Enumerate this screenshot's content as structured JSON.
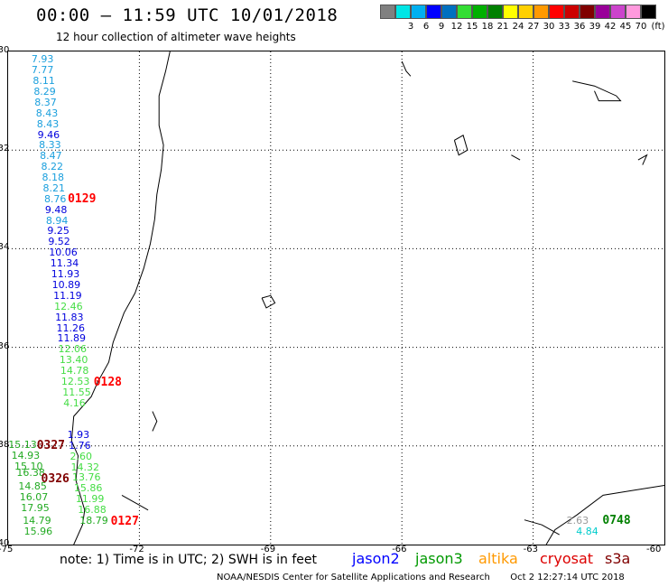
{
  "header": {
    "title": "00:00 — 11:59 UTC 10/01/2018",
    "subtitle": "12 hour collection of altimeter wave heights"
  },
  "legend": {
    "unit": "(ft)",
    "items": [
      {
        "label": "",
        "color": "#808080"
      },
      {
        "label": "3",
        "color": "#00e5e5"
      },
      {
        "label": "6",
        "color": "#00b0f0"
      },
      {
        "label": "9",
        "color": "#0000ff"
      },
      {
        "label": "12",
        "color": "#0070c0"
      },
      {
        "label": "15",
        "color": "#33dd33"
      },
      {
        "label": "18",
        "color": "#00b000"
      },
      {
        "label": "21",
        "color": "#008000"
      },
      {
        "label": "24",
        "color": "#ffff00"
      },
      {
        "label": "27",
        "color": "#ffd000"
      },
      {
        "label": "30",
        "color": "#ff9900"
      },
      {
        "label": "33",
        "color": "#ff0000"
      },
      {
        "label": "36",
        "color": "#cc0000"
      },
      {
        "label": "39",
        "color": "#800000"
      },
      {
        "label": "42",
        "color": "#990099"
      },
      {
        "label": "45",
        "color": "#cc44cc"
      },
      {
        "label": "70",
        "color": "#ff99dd"
      },
      {
        "label": "",
        "color": "#000000"
      }
    ]
  },
  "map": {
    "lat_labels": [
      "-30",
      "-32",
      "-34",
      "-36",
      "-38",
      "-40"
    ],
    "lon_labels": [
      "-75",
      "-72",
      "-69",
      "-66",
      "-63",
      "-60"
    ]
  },
  "observations": [
    {
      "v": "7.93",
      "c": "#1a9fdd",
      "lon": -74.28,
      "lat": -30.17
    },
    {
      "v": "7.77",
      "c": "#1a9fdd",
      "lon": -74.28,
      "lat": -30.39
    },
    {
      "v": "8.11",
      "c": "#1a9fdd",
      "lon": -74.25,
      "lat": -30.61
    },
    {
      "v": "8.29",
      "c": "#1a9fdd",
      "lon": -74.23,
      "lat": -30.83
    },
    {
      "v": "8.37",
      "c": "#1a9fdd",
      "lon": -74.21,
      "lat": -31.04
    },
    {
      "v": "8.43",
      "c": "#1a9fdd",
      "lon": -74.18,
      "lat": -31.26
    },
    {
      "v": "8.43",
      "c": "#1a9fdd",
      "lon": -74.16,
      "lat": -31.48
    },
    {
      "v": "9.46",
      "c": "#0000dd",
      "lon": -74.14,
      "lat": -31.7
    },
    {
      "v": "8.33",
      "c": "#1a9fdd",
      "lon": -74.11,
      "lat": -31.91
    },
    {
      "v": "8.47",
      "c": "#1a9fdd",
      "lon": -74.09,
      "lat": -32.13
    },
    {
      "v": "8.22",
      "c": "#1a9fdd",
      "lon": -74.06,
      "lat": -32.35
    },
    {
      "v": "8.18",
      "c": "#1a9fdd",
      "lon": -74.04,
      "lat": -32.57
    },
    {
      "v": "8.21",
      "c": "#1a9fdd",
      "lon": -74.02,
      "lat": -32.78
    },
    {
      "v": "8.76",
      "c": "#1a9fdd",
      "lon": -73.99,
      "lat": -33.0
    },
    {
      "v": "9.48",
      "c": "#0000dd",
      "lon": -73.97,
      "lat": -33.22
    },
    {
      "v": "8.94",
      "c": "#1a9fdd",
      "lon": -73.95,
      "lat": -33.44
    },
    {
      "v": "9.25",
      "c": "#0000dd",
      "lon": -73.92,
      "lat": -33.65
    },
    {
      "v": "9.52",
      "c": "#0000dd",
      "lon": -73.9,
      "lat": -33.87
    },
    {
      "v": "10.06",
      "c": "#0000dd",
      "lon": -73.88,
      "lat": -34.09
    },
    {
      "v": "11.34",
      "c": "#0000dd",
      "lon": -73.85,
      "lat": -34.31
    },
    {
      "v": "11.93",
      "c": "#0000dd",
      "lon": -73.83,
      "lat": -34.53
    },
    {
      "v": "10.89",
      "c": "#0000dd",
      "lon": -73.81,
      "lat": -34.75
    },
    {
      "v": "11.19",
      "c": "#0000dd",
      "lon": -73.78,
      "lat": -34.96
    },
    {
      "v": "12.46",
      "c": "#44dd44",
      "lon": -73.76,
      "lat": -35.18
    },
    {
      "v": "11.83",
      "c": "#0000dd",
      "lon": -73.74,
      "lat": -35.4
    },
    {
      "v": "11.26",
      "c": "#0000dd",
      "lon": -73.71,
      "lat": -35.62
    },
    {
      "v": "11.89",
      "c": "#0000dd",
      "lon": -73.69,
      "lat": -35.83
    },
    {
      "v": "12.06",
      "c": "#44dd44",
      "lon": -73.67,
      "lat": -36.05
    },
    {
      "v": "13.40",
      "c": "#44dd44",
      "lon": -73.64,
      "lat": -36.27
    },
    {
      "v": "14.78",
      "c": "#44dd44",
      "lon": -73.62,
      "lat": -36.49
    },
    {
      "v": "12.53",
      "c": "#44dd44",
      "lon": -73.6,
      "lat": -36.7
    },
    {
      "v": "11.55",
      "c": "#44dd44",
      "lon": -73.57,
      "lat": -36.92
    },
    {
      "v": "4.16",
      "c": "#44dd44",
      "lon": -73.55,
      "lat": -37.14
    },
    {
      "v": "1.93",
      "c": "#0000dd",
      "lon": -73.46,
      "lat": -37.78
    },
    {
      "v": "1.76",
      "c": "#0000dd",
      "lon": -73.43,
      "lat": -38.0
    },
    {
      "v": "2.60",
      "c": "#44dd44",
      "lon": -73.4,
      "lat": -38.22
    },
    {
      "v": "14.32",
      "c": "#44dd44",
      "lon": -73.38,
      "lat": -38.44
    },
    {
      "v": "13.76",
      "c": "#44dd44",
      "lon": -73.35,
      "lat": -38.65
    },
    {
      "v": "15.86",
      "c": "#44dd44",
      "lon": -73.31,
      "lat": -38.87
    },
    {
      "v": "11.99",
      "c": "#44dd44",
      "lon": -73.27,
      "lat": -39.09
    },
    {
      "v": "16.88",
      "c": "#44dd44",
      "lon": -73.22,
      "lat": -39.31
    },
    {
      "v": "18.79",
      "c": "#22aa22",
      "lon": -73.18,
      "lat": -39.52
    },
    {
      "v": "15.13",
      "c": "#22aa22",
      "lon": -74.81,
      "lat": -37.98
    },
    {
      "v": "14.93",
      "c": "#22aa22",
      "lon": -74.74,
      "lat": -38.2
    },
    {
      "v": "15.10",
      "c": "#22aa22",
      "lon": -74.67,
      "lat": -38.42
    },
    {
      "v": "16.38",
      "c": "#22aa22",
      "lon": -74.62,
      "lat": -38.56
    },
    {
      "v": "14.85",
      "c": "#22aa22",
      "lon": -74.58,
      "lat": -38.82
    },
    {
      "v": "16.07",
      "c": "#22aa22",
      "lon": -74.55,
      "lat": -39.04
    },
    {
      "v": "17.95",
      "c": "#22aa22",
      "lon": -74.52,
      "lat": -39.26
    },
    {
      "v": "14.79",
      "c": "#22aa22",
      "lon": -74.48,
      "lat": -39.52
    },
    {
      "v": "15.96",
      "c": "#22aa22",
      "lon": -74.45,
      "lat": -39.74
    },
    {
      "v": "2.63",
      "c": "#999999",
      "lon": -62.05,
      "lat": -39.52
    },
    {
      "v": "4.84",
      "c": "#00cccc",
      "lon": -61.83,
      "lat": -39.74
    }
  ],
  "pass_times": [
    {
      "t": "0129",
      "c": "#ff0000",
      "lon": -73.45,
      "lat": -33.01
    },
    {
      "t": "0128",
      "c": "#ff0000",
      "lon": -72.86,
      "lat": -36.72
    },
    {
      "t": "0327",
      "c": "#800000",
      "lon": -74.16,
      "lat": -38.0
    },
    {
      "t": "0326",
      "c": "#800000",
      "lon": -74.06,
      "lat": -38.68
    },
    {
      "t": "0127",
      "c": "#ff0000",
      "lon": -72.47,
      "lat": -39.55
    },
    {
      "t": "0748",
      "c": "#008000",
      "lon": -61.23,
      "lat": -39.53
    }
  ],
  "footer": {
    "note": "note: 1) Time is in UTC; 2) SWH is in feet",
    "satellites": [
      {
        "name": "jason2",
        "color": "#0000ff"
      },
      {
        "name": "jason3",
        "color": "#009900"
      },
      {
        "name": "altika",
        "color": "#ff9900"
      },
      {
        "name": "cryosat",
        "color": "#dd0000"
      },
      {
        "name": "s3a",
        "color": "#800000"
      }
    ],
    "credit": "NOAA/NESDIS Center for Satellite Applications and Research",
    "timestamp": "Oct  2 12:27:14 UTC 2018"
  }
}
